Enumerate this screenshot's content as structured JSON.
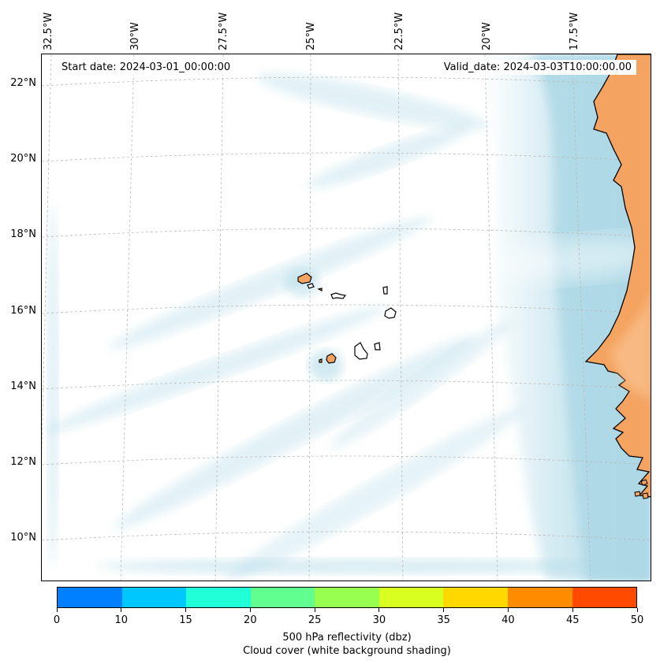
{
  "map": {
    "start_date": "Start date: 2024-03-01_00:00:00",
    "valid_date": "Valid_date: 2024-03-03T10:00:00.00",
    "lon_labels": [
      "32.5°W",
      "30°W",
      "27.5°W",
      "25°W",
      "22.5°W",
      "20°W",
      "17.5°W"
    ],
    "lat_labels": [
      "22°N",
      "20°N",
      "18°N",
      "16°N",
      "14°N",
      "12°N",
      "10°N"
    ],
    "land_color": "#f4a460",
    "cloud_color": "#add8e6",
    "coastline_color": "#000000"
  },
  "colorbar": {
    "ticks": [
      "0",
      "10",
      "15",
      "20",
      "25",
      "30",
      "35",
      "40",
      "45",
      "50"
    ],
    "colors": [
      "#0080ff",
      "#00c8ff",
      "#20ffd8",
      "#60ff90",
      "#98ff50",
      "#d8ff20",
      "#ffd800",
      "#ff8c00",
      "#ff4a00"
    ],
    "label_line1": "500 hPa reflectivity (dbz)",
    "label_line2": "Cloud cover (white background shading)"
  }
}
